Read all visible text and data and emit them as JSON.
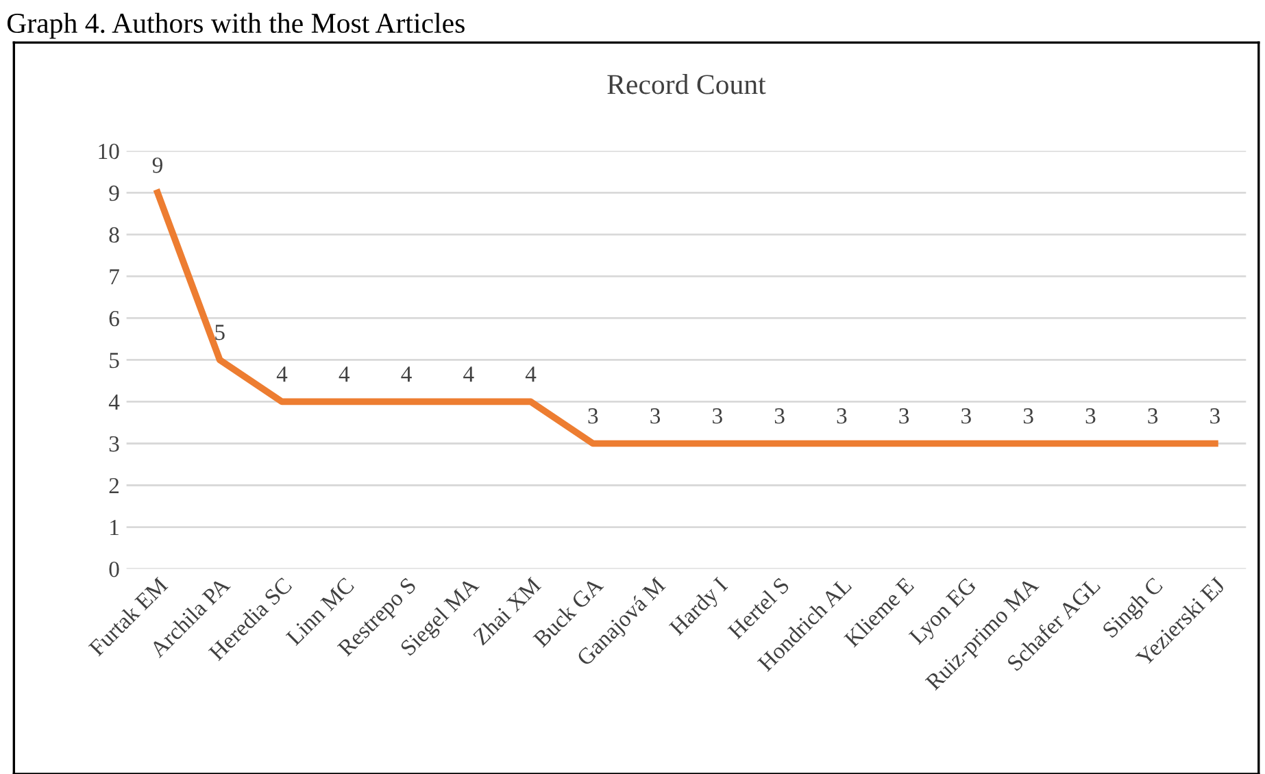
{
  "chart_data": {
    "type": "line",
    "title": "Record Count",
    "annotations": [
      "Graph 4. Authors with the Most Articles"
    ],
    "categories": [
      "Furtak EM",
      "Archila PA",
      "Heredia SC",
      "Linn MC",
      "Restrepo S",
      "Siegel MA",
      "Zhai XM",
      "Buck GA",
      "Ganajová M",
      "Hardy I",
      "Hertel S",
      "Hondrich AL",
      "Klieme E",
      "Lyon EG",
      "Ruiz-primo MA",
      "Schafer AGL",
      "Singh C",
      "Yezierski EJ"
    ],
    "series": [
      {
        "color": "#ed7d31",
        "values": [
          9,
          5,
          4,
          4,
          4,
          4,
          4,
          3,
          3,
          3,
          3,
          3,
          3,
          3,
          3,
          3,
          3,
          3
        ]
      }
    ],
    "ylim": [
      0,
      10
    ],
    "yticks": [
      0,
      1,
      2,
      3,
      4,
      5,
      6,
      7,
      8,
      9,
      10
    ],
    "grid": "y",
    "data_labels": true,
    "marker": "none",
    "line_style": "solid"
  }
}
